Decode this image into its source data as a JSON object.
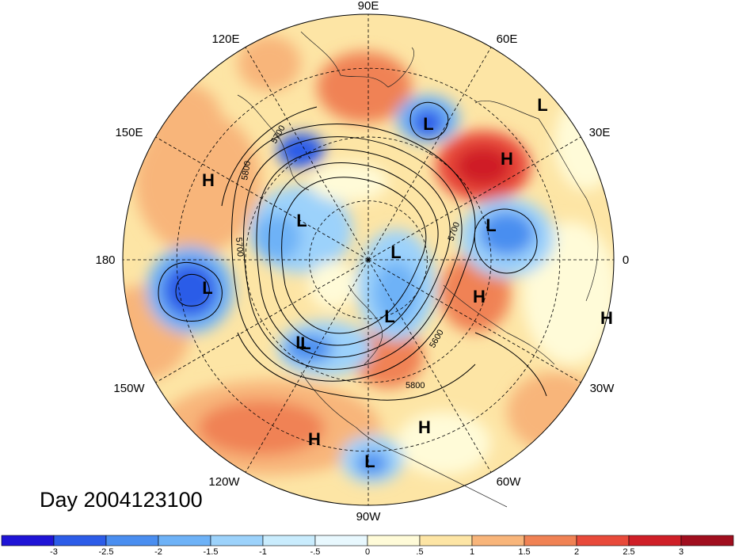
{
  "title": "Day 2004123100",
  "longitude_labels": [
    {
      "id": "90e",
      "text": "90E"
    },
    {
      "id": "60e",
      "text": "60E"
    },
    {
      "id": "30e",
      "text": "30E"
    },
    {
      "id": "0",
      "text": "0"
    },
    {
      "id": "30w",
      "text": "30W"
    },
    {
      "id": "60w",
      "text": "60W"
    },
    {
      "id": "90w",
      "text": "90W"
    },
    {
      "id": "120w",
      "text": "120W"
    },
    {
      "id": "150w",
      "text": "150W"
    },
    {
      "id": "180",
      "text": "180"
    },
    {
      "id": "150e",
      "text": "150E"
    },
    {
      "id": "120e",
      "text": "120E"
    }
  ],
  "pressure_centers": [
    {
      "type": "L",
      "label": "L"
    },
    {
      "type": "L",
      "label": "L"
    },
    {
      "type": "H",
      "label": "H"
    },
    {
      "type": "H",
      "label": "H"
    },
    {
      "type": "L",
      "label": "L"
    },
    {
      "type": "L",
      "label": "L"
    },
    {
      "type": "L",
      "label": "L"
    },
    {
      "type": "H",
      "label": "H"
    },
    {
      "type": "L",
      "label": "L"
    },
    {
      "type": "L",
      "label": "L"
    },
    {
      "type": "L",
      "label": "L"
    },
    {
      "type": "H",
      "label": "H"
    },
    {
      "type": "L",
      "label": "L"
    },
    {
      "type": "H",
      "label": "H"
    },
    {
      "type": "H",
      "label": "H"
    },
    {
      "type": "L",
      "label": "L"
    }
  ],
  "contour_labels": [
    "5700",
    "5800",
    "5700",
    "5600",
    "5800",
    "5700"
  ],
  "colorbar": {
    "ticks": [
      "-3",
      "-2.5",
      "-2",
      "-1.5",
      "-1",
      "-.5",
      "0",
      ".5",
      "1",
      "1.5",
      "2",
      "2.5",
      "3"
    ],
    "colors": [
      "#1f14d6",
      "#2c5ce8",
      "#4a8ef0",
      "#6eb2f7",
      "#9cd2fb",
      "#c9ecfd",
      "#e8f8fe",
      "#fffbd8",
      "#fde5a5",
      "#f8b57a",
      "#f08254",
      "#e84a3a",
      "#cf1f27",
      "#a00e1e"
    ]
  }
}
